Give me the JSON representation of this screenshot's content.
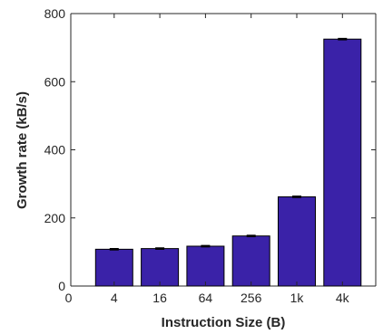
{
  "chart_data": {
    "type": "bar",
    "xlabel": "Instruction Size (B)",
    "ylabel": "Growth rate (kB/s)",
    "x_tick_labels": [
      "0",
      "4",
      "16",
      "64",
      "256",
      "1k",
      "4k"
    ],
    "categories": [
      "4",
      "16",
      "64",
      "256",
      "1k",
      "4k"
    ],
    "values": [
      108,
      110,
      117,
      147,
      262,
      725
    ],
    "errors": [
      2,
      2,
      2,
      2,
      2,
      2
    ],
    "ylim": [
      0,
      800
    ],
    "yticks": [
      0,
      200,
      400,
      600,
      800
    ],
    "grid": false,
    "legend": "none",
    "colors": {
      "bar": "#3a22a8",
      "bar_edge": "#000000",
      "axis": "#262626"
    }
  }
}
